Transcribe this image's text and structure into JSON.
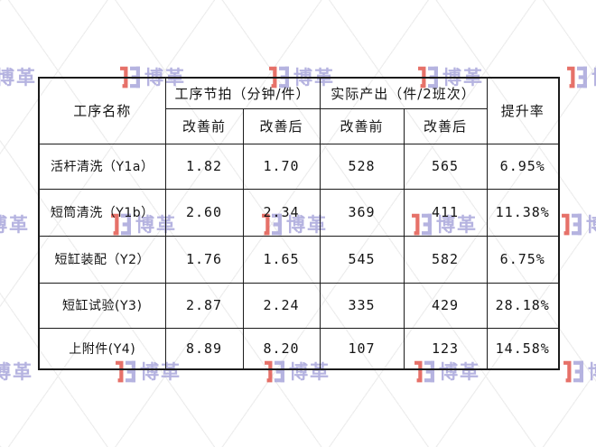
{
  "watermark": {
    "brand_text": "博革",
    "lavender": "#a9a6db",
    "red": "#e2594f"
  },
  "table": {
    "header": {
      "col_process": "工序名称",
      "group_takt": "工序节拍（分钟/件）",
      "group_output": "实际产出（件/2班次）",
      "col_rate": "提升率",
      "sub_before": "改善前",
      "sub_after": "改善后"
    },
    "rows": [
      {
        "name": "活杆清洗（Y1a）",
        "takt_before": "1.82",
        "takt_after": "1.70",
        "out_before": "528",
        "out_after": "565",
        "rate": "6.95%"
      },
      {
        "name": "短筒清洗（Y1b）",
        "takt_before": "2.60",
        "takt_after": "2.34",
        "out_before": "369",
        "out_after": "411",
        "rate": "11.38%"
      },
      {
        "name": "短缸装配（Y2）",
        "takt_before": "1.76",
        "takt_after": "1.65",
        "out_before": "545",
        "out_after": "582",
        "rate": "6.75%"
      },
      {
        "name": "短缸试验(Y3)",
        "takt_before": "2.87",
        "takt_after": "2.24",
        "out_before": "335",
        "out_after": "429",
        "rate": "28.18%"
      },
      {
        "name": "上附件(Y4)",
        "takt_before": "8.89",
        "takt_after": "8.20",
        "out_before": "107",
        "out_after": "123",
        "rate": "14.58%"
      }
    ]
  },
  "chart_data": {
    "type": "table",
    "title": "工序改善前后对比",
    "columns": [
      "工序名称",
      "工序节拍（分钟/件）改善前",
      "工序节拍（分钟/件）改善后",
      "实际产出（件/2班次）改善前",
      "实际产出（件/2班次）改善后",
      "提升率"
    ],
    "rows": [
      [
        "活杆清洗（Y1a）",
        1.82,
        1.7,
        528,
        565,
        "6.95%"
      ],
      [
        "短筒清洗（Y1b）",
        2.6,
        2.34,
        369,
        411,
        "11.38%"
      ],
      [
        "短缸装配（Y2）",
        1.76,
        1.65,
        545,
        582,
        "6.75%"
      ],
      [
        "短缸试验(Y3)",
        2.87,
        2.24,
        335,
        429,
        "28.18%"
      ],
      [
        "上附件(Y4)",
        8.89,
        8.2,
        107,
        123,
        "14.58%"
      ]
    ]
  }
}
